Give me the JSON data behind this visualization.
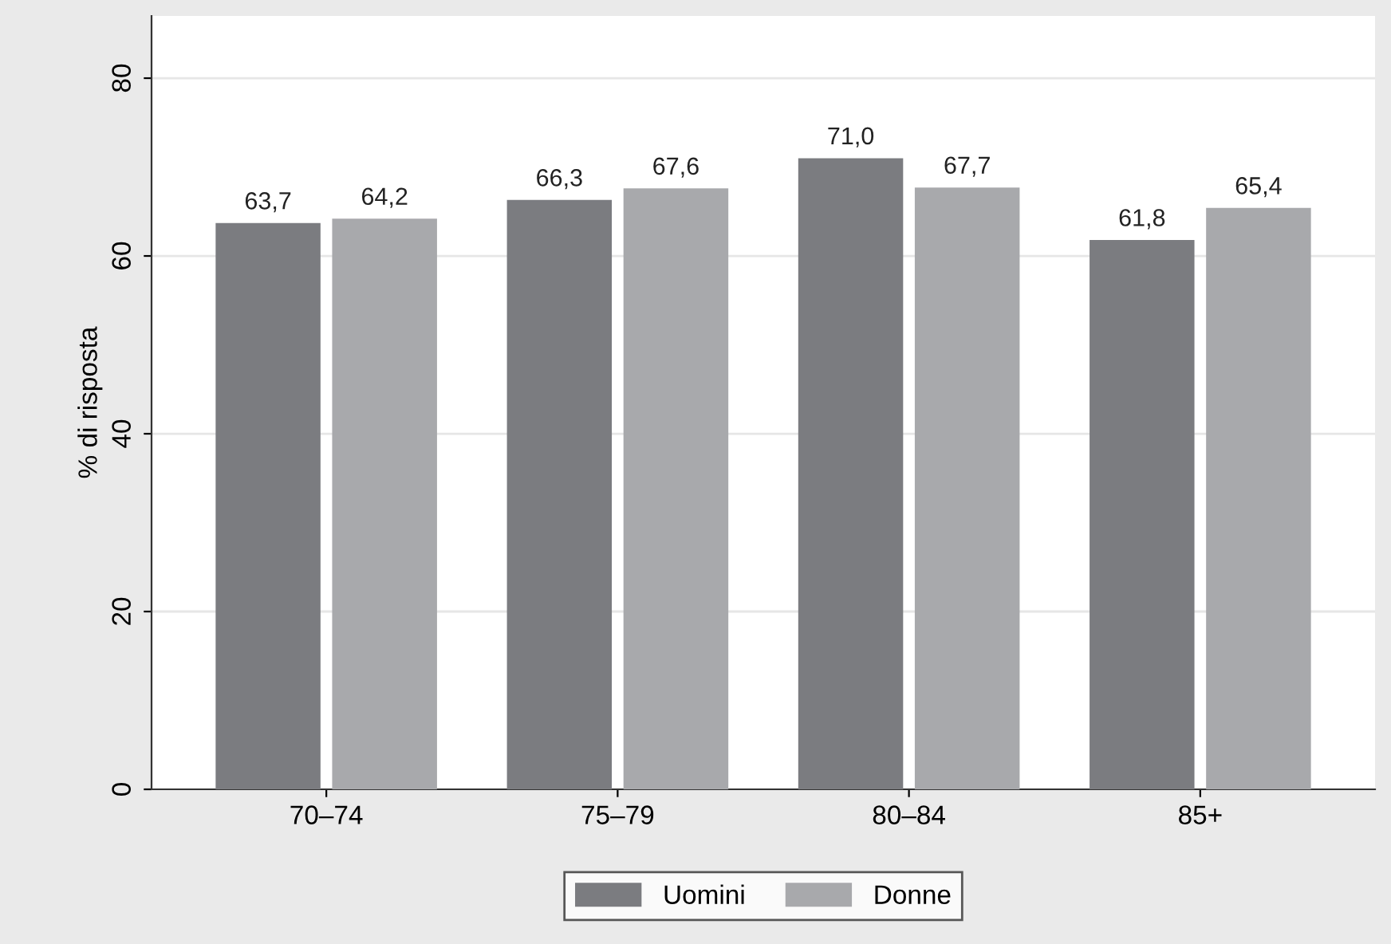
{
  "chart_data": {
    "type": "bar",
    "ylabel": "% di risposta",
    "categories": [
      "70–74",
      "75–79",
      "80–84",
      "85+"
    ],
    "series": [
      {
        "name": "Uomini",
        "color": "#7b7c80",
        "values": [
          63.7,
          66.3,
          71.0,
          61.8
        ],
        "value_labels": [
          "63,7",
          "66,3",
          "71,0",
          "61,8"
        ]
      },
      {
        "name": "Donne",
        "color": "#a8a9ac",
        "values": [
          64.2,
          67.6,
          67.7,
          65.4
        ],
        "value_labels": [
          "64,2",
          "67,6",
          "67,7",
          "65,4"
        ]
      }
    ],
    "ylim": [
      0,
      87
    ],
    "yticks": [
      0,
      20,
      40,
      60,
      80
    ],
    "grid": "y",
    "legend": "bottom"
  }
}
